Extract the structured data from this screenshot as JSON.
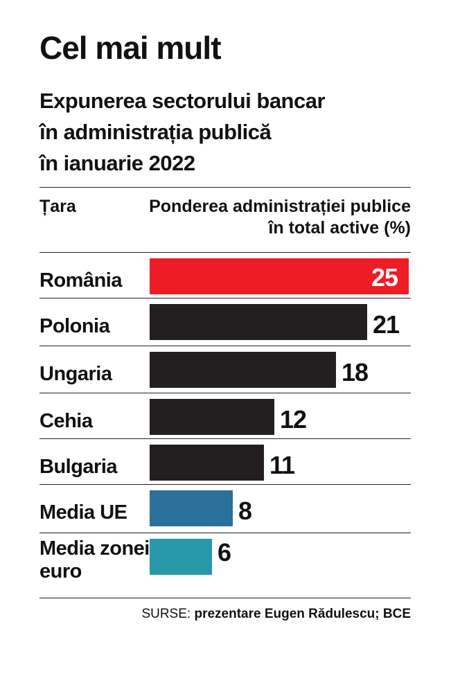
{
  "title": "Cel mai mult",
  "subtitle_lines": [
    "Expunerea sectorului bancar",
    "în administrația publică",
    "în ianuarie 2022"
  ],
  "header": {
    "country": "Țara",
    "value_line1": "Ponderea administrației publice",
    "value_line2": "în total active (%)"
  },
  "source": {
    "prefix": "SURSE:",
    "text": "prezentare Eugen Rădulescu; BCE"
  },
  "colors": {
    "highlight": "#ee1c25",
    "country": "#231f20",
    "eu": "#2b6f9b",
    "euro": "#2799a8"
  },
  "chart_data": {
    "type": "bar",
    "orientation": "horizontal",
    "categories": [
      "România",
      "Polonia",
      "Ungaria",
      "Cehia",
      "Bulgaria",
      "Media UE",
      "Media zonei euro"
    ],
    "values": [
      25,
      21,
      18,
      12,
      11,
      8,
      6
    ],
    "title": "Cel mai mult",
    "xlabel": "Ponderea administrației publice în total active (%)",
    "ylabel": "Țara"
  }
}
